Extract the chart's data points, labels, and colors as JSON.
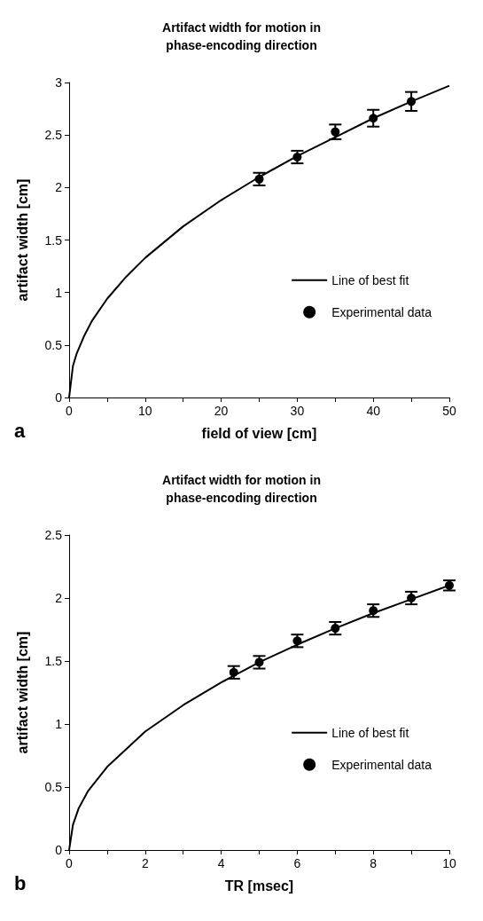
{
  "chart_data": [
    {
      "type": "scatter",
      "title": "Artifact width for motion in\nphase-encoding direction",
      "xlabel": "field of view [cm]",
      "ylabel": "artifact width [cm]",
      "annotations": [
        "a"
      ],
      "xlim": [
        0,
        50
      ],
      "xticks": [
        0,
        {
          "value": 5,
          "label": null
        },
        10,
        {
          "value": 15,
          "label": null
        },
        20,
        {
          "value": 25,
          "label": null
        },
        30,
        {
          "value": 35,
          "label": null
        },
        40,
        {
          "value": 45,
          "label": null
        },
        50
      ],
      "ylim": [
        0,
        3
      ],
      "yticks": [
        0,
        0.5,
        1,
        1.5,
        2,
        2.5,
        3
      ],
      "grid": false,
      "legend": "right",
      "series": [
        {
          "name": "Line of best fit",
          "type": "line",
          "color": "#000000",
          "marker": "none",
          "x": [
            0,
            0.5,
            1,
            2,
            3,
            5,
            7.5,
            10,
            15,
            20,
            25,
            30,
            35,
            40,
            45,
            50
          ],
          "values": [
            0,
            0.3,
            0.42,
            0.59,
            0.73,
            0.94,
            1.15,
            1.33,
            1.63,
            1.88,
            2.1,
            2.3,
            2.48,
            2.66,
            2.82,
            2.97
          ]
        },
        {
          "name": "Experimental data",
          "color": "#000000",
          "marker": "circle",
          "x": [
            25,
            30,
            35,
            40,
            45
          ],
          "values": [
            2.08,
            2.29,
            2.53,
            2.66,
            2.82
          ],
          "errors": [
            0.06,
            0.06,
            0.07,
            0.08,
            0.09
          ]
        }
      ]
    },
    {
      "type": "scatter",
      "title": "Artifact width for motion in\nphase-encoding direction",
      "xlabel": "TR [msec]",
      "ylabel": "artifact width [cm]",
      "annotations": [
        "b"
      ],
      "xlim": [
        0,
        10
      ],
      "xticks": [
        0,
        {
          "value": 1,
          "label": null
        },
        2,
        {
          "value": 3,
          "label": null
        },
        4,
        {
          "value": 5,
          "label": null
        },
        6,
        {
          "value": 7,
          "label": null
        },
        8,
        {
          "value": 9,
          "label": null
        },
        10
      ],
      "ylim": [
        0,
        2.5
      ],
      "yticks": [
        0,
        0.5,
        1,
        1.5,
        2,
        2.5
      ],
      "grid": false,
      "legend": "right",
      "series": [
        {
          "name": "Line of best fit",
          "type": "line",
          "color": "#000000",
          "marker": "none",
          "x": [
            0,
            0.1,
            0.25,
            0.5,
            1,
            2,
            3,
            4,
            5,
            6,
            7,
            8,
            9,
            10
          ],
          "values": [
            0,
            0.2,
            0.33,
            0.47,
            0.66,
            0.94,
            1.15,
            1.33,
            1.49,
            1.63,
            1.76,
            1.88,
            1.99,
            2.1
          ]
        },
        {
          "name": "Experimental data",
          "color": "#000000",
          "marker": "circle",
          "x": [
            4.33,
            5,
            6,
            7,
            8,
            9,
            10
          ],
          "values": [
            1.41,
            1.49,
            1.66,
            1.76,
            1.9,
            2.0,
            2.1
          ],
          "errors": [
            0.05,
            0.05,
            0.05,
            0.05,
            0.05,
            0.05,
            0.04
          ]
        }
      ]
    }
  ]
}
